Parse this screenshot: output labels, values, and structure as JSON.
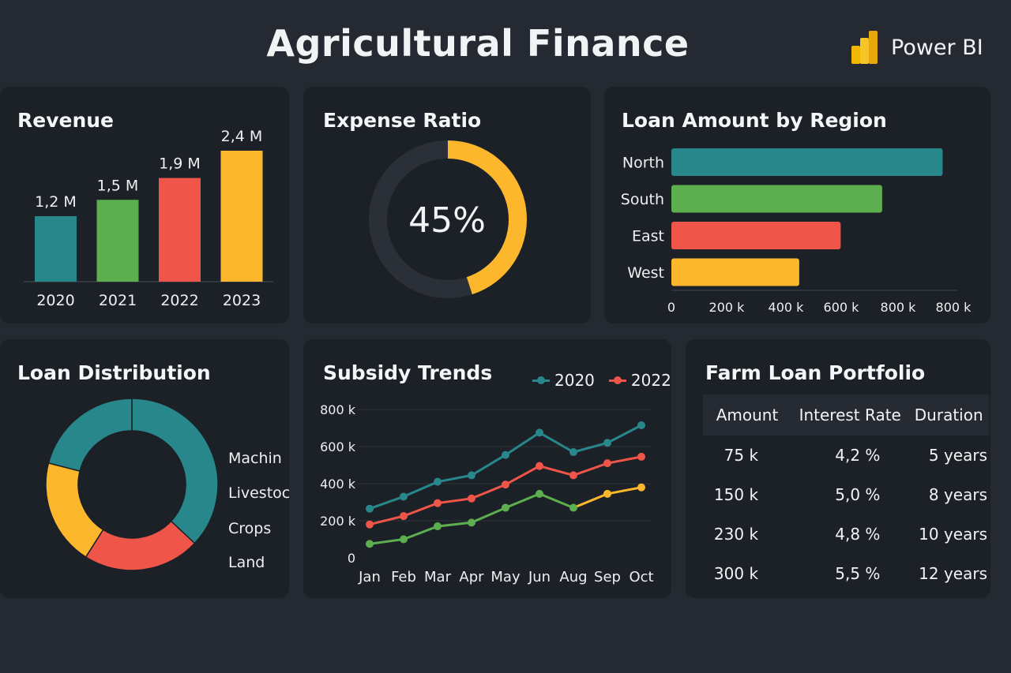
{
  "header": {
    "title": "Agricultural Finance",
    "brand": "Power BI"
  },
  "colors": {
    "teal": "#27878a",
    "green": "#5cae4f",
    "red": "#f0554a",
    "yellow": "#fdb72c",
    "track": "#2b2f37",
    "background": "#252a32",
    "card": "#1c2027"
  },
  "revenue": {
    "title": "Revenue",
    "chart_data": {
      "type": "bar",
      "title": "Revenue",
      "categories": [
        "2020",
        "2021",
        "2022",
        "2023"
      ],
      "values": [
        1.2,
        1.5,
        1.9,
        2.4
      ],
      "value_labels": [
        "1,2 M",
        "1,5 M",
        "1,9 M",
        "2,4 M"
      ],
      "colors": [
        "#27878a",
        "#5cae4f",
        "#f0554a",
        "#fdb72c"
      ],
      "ylim": [
        0,
        2.4
      ],
      "grid": false
    }
  },
  "expense_ratio": {
    "title": "Expense Ratio",
    "value_label": "45%",
    "value": 45
  },
  "loan_by_region": {
    "title": "Loan Amount by Region",
    "chart_data": {
      "type": "bar",
      "orientation": "horizontal",
      "title": "Loan Amount by Region",
      "categories": [
        "North",
        "South",
        "East",
        "West"
      ],
      "values": [
        785,
        610,
        490,
        370
      ],
      "colors": [
        "#27878a",
        "#5cae4f",
        "#f0554a",
        "#fdb72c"
      ],
      "xticks": [
        "0",
        "200 k",
        "400 k",
        "600 k",
        "800 k",
        "800 k"
      ],
      "xlim": [
        0,
        800
      ],
      "grid": false
    }
  },
  "loan_distribution": {
    "title": "Loan Distribution",
    "chart_data": {
      "type": "pie",
      "donut": true,
      "title": "Loan Distribution",
      "labels": [
        "Machin",
        "Livestock",
        "Crops",
        "Land"
      ],
      "values": [
        37,
        22,
        20,
        21
      ],
      "colors": [
        "#27878a",
        "#f0554a",
        "#fdb72c",
        "#27878a"
      ]
    }
  },
  "subsidy_trends": {
    "title": "Subsidy Trends",
    "chart_data": {
      "type": "line",
      "title": "Subsidy Trends",
      "x": [
        "Jan",
        "Feb",
        "Mar",
        "Apr",
        "May",
        "Jun",
        "Aug",
        "Sep",
        "Oct"
      ],
      "yticks": [
        "0",
        "200 k",
        "400 k",
        "600 k",
        "800 k"
      ],
      "ylim": [
        0,
        800
      ],
      "grid": true,
      "legend_position": "top-right",
      "series": [
        {
          "name": "2020",
          "color": "#27878a",
          "values": [
            265,
            330,
            410,
            445,
            555,
            675,
            570,
            620,
            715
          ]
        },
        {
          "name": "2022",
          "color": "#f0554a",
          "values": [
            180,
            225,
            295,
            320,
            395,
            495,
            445,
            510,
            545
          ]
        },
        {
          "name": "",
          "color": "#5cae4f",
          "values": [
            75,
            100,
            170,
            190,
            270,
            345,
            270,
            345,
            380
          ]
        }
      ]
    }
  },
  "portfolio": {
    "title": "Farm Loan Portfolio",
    "columns": [
      "Amount",
      "Interest Rate",
      "Duration"
    ],
    "rows": [
      [
        "75 k",
        "4,2 %",
        "5 years"
      ],
      [
        "150 k",
        "5,0 %",
        "8 years"
      ],
      [
        "230 k",
        "4,8 %",
        "10 years"
      ],
      [
        "300 k",
        "5,5 %",
        "12 years"
      ]
    ]
  }
}
